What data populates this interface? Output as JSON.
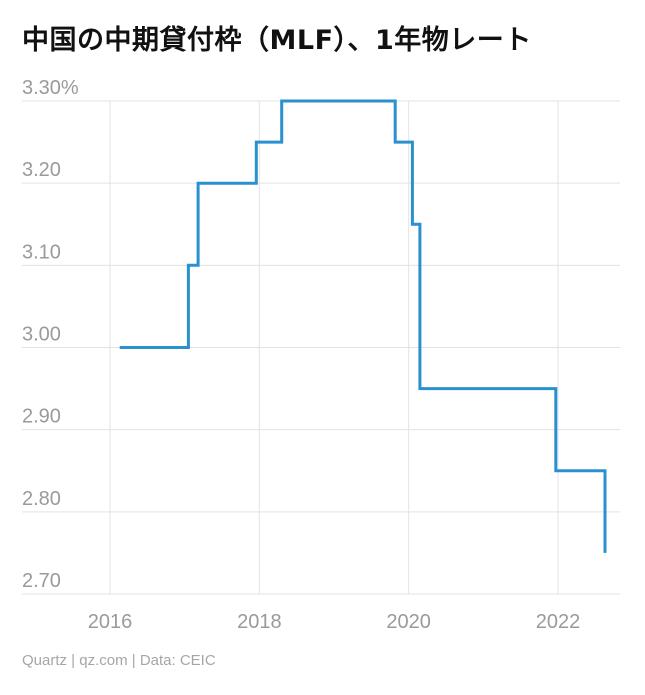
{
  "title": "中国の中期貸付枠（MLF）、1年物レート",
  "source": "Quartz | qz.com | Data: CEIC",
  "colors": {
    "line": "#2a90d0",
    "grid": "#e3e3e3",
    "label": "#9a9a9a"
  },
  "chart_data": {
    "type": "line",
    "title": "中国の中期貸付枠（MLF）、1年物レート",
    "xlabel": "",
    "ylabel": "",
    "xlim": [
      2015.5,
      2022.9
    ],
    "ylim": [
      2.7,
      3.3
    ],
    "x_ticks": [
      2016,
      2018,
      2020,
      2022
    ],
    "x_tick_labels": [
      "2016",
      "2018",
      "2020",
      "2022"
    ],
    "y_ticks": [
      3.3,
      3.2,
      3.1,
      3.0,
      2.9,
      2.8,
      2.7
    ],
    "y_tick_labels": [
      "3.30%",
      "3.20",
      "3.10",
      "3.00",
      "2.90",
      "2.80",
      "2.70"
    ],
    "grid": true,
    "step": true,
    "series": [
      {
        "name": "",
        "x": [
          2016.13,
          2017.05,
          2017.18,
          2017.96,
          2018.3,
          2019.82,
          2020.05,
          2020.15,
          2020.3,
          2021.97,
          2022.55,
          2022.63
        ],
        "y": [
          3.0,
          3.1,
          3.2,
          3.25,
          3.3,
          3.25,
          3.15,
          2.95,
          2.95,
          2.85,
          2.85,
          2.75
        ]
      }
    ]
  }
}
